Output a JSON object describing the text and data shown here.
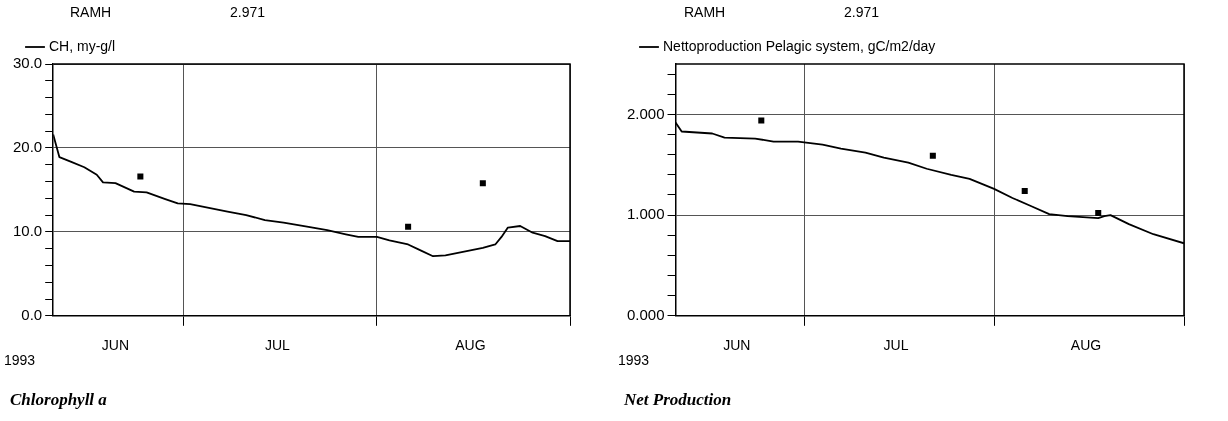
{
  "chart_data": [
    {
      "type": "line",
      "title": "Chlorophyll a",
      "annotations": [
        "RAMH",
        "2.971",
        "1993"
      ],
      "xlim": [
        "1993-06-10",
        "1993-09-01"
      ],
      "xticks": [
        {
          "value": "1993-06-20",
          "label": "JUN"
        },
        {
          "value": "1993-07-01",
          "label": null
        },
        {
          "value": "1993-07-16",
          "label": "JUL"
        },
        {
          "value": "1993-08-01",
          "label": null
        },
        {
          "value": "1993-08-16",
          "label": "AUG"
        },
        {
          "value": "1993-09-01",
          "label": null
        }
      ],
      "ylim": [
        0,
        30
      ],
      "yticks": [
        {
          "value": 0,
          "label": "0.0"
        },
        {
          "value": 2,
          "label": null
        },
        {
          "value": 4,
          "label": null
        },
        {
          "value": 6,
          "label": null
        },
        {
          "value": 8,
          "label": null
        },
        {
          "value": 10,
          "label": "10.0"
        },
        {
          "value": 12,
          "label": null
        },
        {
          "value": 14,
          "label": null
        },
        {
          "value": 16,
          "label": null
        },
        {
          "value": 18,
          "label": null
        },
        {
          "value": 20,
          "label": "20.0"
        },
        {
          "value": 22,
          "label": null
        },
        {
          "value": 24,
          "label": null
        },
        {
          "value": 26,
          "label": null
        },
        {
          "value": 28,
          "label": null
        },
        {
          "value": 30,
          "label": "30.0"
        }
      ],
      "grid": true,
      "legend": "top left",
      "series": [
        {
          "name": "CH, my-g/l",
          "type": "line",
          "color": "#000000",
          "marker": "none",
          "x": [
            "1993-06-10",
            "1993-06-11",
            "1993-06-13",
            "1993-06-15",
            "1993-06-17",
            "1993-06-18",
            "1993-06-20",
            "1993-06-23",
            "1993-06-25",
            "1993-06-28",
            "1993-06-30",
            "1993-07-02",
            "1993-07-04",
            "1993-07-08",
            "1993-07-11",
            "1993-07-14",
            "1993-07-17",
            "1993-07-21",
            "1993-07-24",
            "1993-07-27",
            "1993-07-29",
            "1993-08-01",
            "1993-08-03",
            "1993-08-06",
            "1993-08-08",
            "1993-08-10",
            "1993-08-12",
            "1993-08-16",
            "1993-08-18",
            "1993-08-20",
            "1993-08-21",
            "1993-08-22",
            "1993-08-24",
            "1993-08-26",
            "1993-08-28",
            "1993-08-30",
            "1993-09-01"
          ],
          "values": [
            21.6,
            18.9,
            18.3,
            17.7,
            16.8,
            15.9,
            15.8,
            14.8,
            14.7,
            13.9,
            13.4,
            13.3,
            13.0,
            12.4,
            12.0,
            11.4,
            11.1,
            10.6,
            10.2,
            9.7,
            9.4,
            9.4,
            9.0,
            8.5,
            7.8,
            7.1,
            7.2,
            7.8,
            8.1,
            8.5,
            9.4,
            10.5,
            10.7,
            9.9,
            9.5,
            8.9,
            8.9
          ]
        },
        {
          "type": "scatter",
          "color": "#000000",
          "marker": "square",
          "x": [
            "1993-06-24",
            "1993-08-06",
            "1993-08-18"
          ],
          "values": [
            16.6,
            10.6,
            15.8
          ]
        }
      ]
    },
    {
      "type": "line",
      "title": "Net Production",
      "annotations": [
        "RAMH",
        "2.971",
        "1993"
      ],
      "xlim": [
        "1993-06-10",
        "1993-09-01"
      ],
      "xticks": [
        {
          "value": "1993-06-20",
          "label": "JUN"
        },
        {
          "value": "1993-07-01",
          "label": null
        },
        {
          "value": "1993-07-16",
          "label": "JUL"
        },
        {
          "value": "1993-08-01",
          "label": null
        },
        {
          "value": "1993-08-16",
          "label": "AUG"
        },
        {
          "value": "1993-09-01",
          "label": null
        }
      ],
      "ylim": [
        0,
        2.5
      ],
      "yticks": [
        {
          "value": 0,
          "label": "0.000"
        },
        {
          "value": 0.2,
          "label": null
        },
        {
          "value": 0.4,
          "label": null
        },
        {
          "value": 0.6,
          "label": null
        },
        {
          "value": 0.8,
          "label": null
        },
        {
          "value": 1,
          "label": "1.000"
        },
        {
          "value": 1.2,
          "label": null
        },
        {
          "value": 1.4,
          "label": null
        },
        {
          "value": 1.6,
          "label": null
        },
        {
          "value": 1.8,
          "label": null
        },
        {
          "value": 2,
          "label": "2.000"
        },
        {
          "value": 2.2,
          "label": null
        },
        {
          "value": 2.4,
          "label": null
        }
      ],
      "grid": true,
      "legend": "top left",
      "series": [
        {
          "name": "Nettoproduction Pelagic system, gC/m2/day",
          "type": "line",
          "color": "#000000",
          "marker": "none",
          "x": [
            "1993-06-10",
            "1993-06-11",
            "1993-06-16",
            "1993-06-18",
            "1993-06-23",
            "1993-06-26",
            "1993-06-30",
            "1993-07-04",
            "1993-07-07",
            "1993-07-11",
            "1993-07-14",
            "1993-07-18",
            "1993-07-21",
            "1993-07-25",
            "1993-07-28",
            "1993-08-01",
            "1993-08-04",
            "1993-08-07",
            "1993-08-10",
            "1993-08-13",
            "1993-08-18",
            "1993-08-19",
            "1993-08-20",
            "1993-08-23",
            "1993-08-27",
            "1993-09-01"
          ],
          "values": [
            1.92,
            1.83,
            1.81,
            1.77,
            1.76,
            1.73,
            1.73,
            1.7,
            1.66,
            1.62,
            1.57,
            1.52,
            1.46,
            1.4,
            1.36,
            1.26,
            1.17,
            1.09,
            1.01,
            0.99,
            0.97,
            0.99,
            1.0,
            0.91,
            0.81,
            0.72
          ]
        },
        {
          "type": "scatter",
          "color": "#000000",
          "marker": "square",
          "x": [
            "1993-06-24",
            "1993-07-22",
            "1993-08-06",
            "1993-08-18"
          ],
          "values": [
            1.94,
            1.59,
            1.24,
            1.02
          ]
        }
      ]
    }
  ]
}
